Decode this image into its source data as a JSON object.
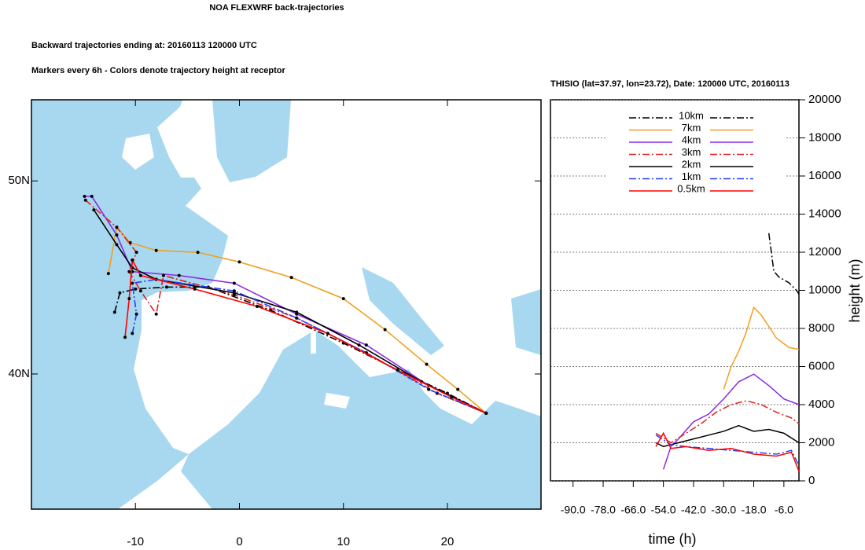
{
  "chart_data": [
    {
      "type": "trajectory-map",
      "title": "NOA FLEXWRF back-trajectories",
      "subtitles": [
        "Backward trajectories ending at: 20160113  120000 UTC",
        "Markers every 6h - Colors denote trajectory height at receptor"
      ],
      "xlim": [
        -20,
        29
      ],
      "ylim": [
        33,
        54.2
      ],
      "xticks": [
        -10,
        0,
        10,
        20
      ],
      "yticks": [
        {
          "value": 40,
          "label": "40N"
        },
        {
          "value": 50,
          "label": "50N"
        }
      ],
      "series": [
        {
          "color": "#000000",
          "linestyle": "dashdot",
          "lon": [
            -12,
            -11.5,
            -10,
            -7,
            -3,
            3,
            10,
            16,
            20,
            23.72
          ],
          "lat": [
            43.2,
            44.2,
            44.4,
            44.5,
            44.5,
            43.3,
            41.6,
            40.0,
            39.0,
            37.97
          ]
        },
        {
          "color": "#f0a020",
          "linestyle": "solid",
          "lon": [
            -12.6,
            -11.8,
            -10.5,
            -8,
            -4,
            0,
            5,
            10,
            14,
            18,
            21,
            23.72
          ],
          "lat": [
            45.2,
            47.6,
            46.8,
            46.4,
            46.3,
            45.8,
            45.0,
            43.9,
            42.3,
            40.5,
            39.2,
            37.97
          ]
        },
        {
          "color": "#8a2be2",
          "linestyle": "solid",
          "lon": [
            -14.9,
            -14.2,
            -11.8,
            -10.3,
            -5.8,
            -0.5,
            5.5,
            12.2,
            18.2,
            23.72
          ],
          "lat": [
            49.2,
            49.2,
            47.2,
            45.3,
            45.1,
            44.7,
            43.1,
            41.5,
            39.4,
            37.97
          ]
        },
        {
          "color": "#e02020",
          "linestyle": "dashdot",
          "lon": [
            -14.8,
            -11.8,
            -9.9,
            -10.6,
            -9.5,
            -8,
            -7.3,
            -0.5,
            5.5,
            12.2,
            19,
            23.72
          ],
          "lat": [
            49,
            47.6,
            46.3,
            45.3,
            44.3,
            43.1,
            45.1,
            44.1,
            42.9,
            41.1,
            39,
            37.97
          ]
        },
        {
          "color": "#000000",
          "linestyle": "solid",
          "lon": [
            -14,
            -11.8,
            -10.3,
            -8,
            -0.5,
            5.5,
            11.5,
            17.5,
            23.72
          ],
          "lat": [
            48.5,
            46.7,
            45.5,
            44.9,
            44.2,
            43.2,
            41.5,
            39.6,
            37.97
          ]
        },
        {
          "color": "#1f3fff",
          "linestyle": "dashdot",
          "lon": [
            -10.3,
            -9.9,
            -10.3,
            -8,
            -0.5,
            5.5,
            12.2,
            18.2,
            23.72
          ],
          "lat": [
            42.1,
            43.1,
            44.7,
            44.9,
            44.3,
            42.9,
            41.1,
            39.2,
            37.97
          ]
        },
        {
          "color": "#ff0000",
          "linestyle": "solid",
          "lon": [
            -11,
            -10.6,
            -10.3,
            -9.5,
            -4.3,
            1.7,
            8.5,
            15.2,
            20.4,
            23.72
          ],
          "lat": [
            41.9,
            43.9,
            45.9,
            45.1,
            44.4,
            43.5,
            42.1,
            40.2,
            38.8,
            37.97
          ]
        }
      ]
    },
    {
      "type": "line",
      "title": "THISIO (lat=37.97,  lon=23.72), Date: 120000 UTC, 20160113",
      "x_label": "time (h)",
      "y_label": "height (m)",
      "xlim": [
        -99,
        0
      ],
      "ylim": [
        0,
        20000
      ],
      "xticks": [
        {
          "value": -90,
          "label": "-90.0"
        },
        {
          "value": -78,
          "label": "-78.0"
        },
        {
          "value": -66,
          "label": "-66.0"
        },
        {
          "value": -54,
          "label": "-54.0"
        },
        {
          "value": -42,
          "label": "-42.0"
        },
        {
          "value": -30,
          "label": "-30.0"
        },
        {
          "value": -18,
          "label": "-18.0"
        },
        {
          "value": -6,
          "label": "-6.0"
        }
      ],
      "yticks": [
        0,
        2000,
        4000,
        6000,
        8000,
        10000,
        12000,
        14000,
        16000,
        18000,
        20000
      ],
      "grid": true,
      "series": [
        {
          "name": "10km",
          "color": "#000000",
          "linestyle": "dashdot",
          "x": [
            -12,
            -11,
            -10,
            -8,
            -4,
            -1,
            0
          ],
          "values": [
            13000,
            12000,
            11000,
            10700,
            10400,
            10000,
            9800
          ]
        },
        {
          "name": "7km",
          "color": "#f0a020",
          "linestyle": "solid",
          "x": [
            -30,
            -27,
            -24,
            -21,
            -18,
            -15,
            -9,
            -4,
            0
          ],
          "values": [
            4800,
            6000,
            6800,
            7800,
            9100,
            8700,
            7500,
            7000,
            6900
          ]
        },
        {
          "name": "4km",
          "color": "#8a2be2",
          "linestyle": "solid",
          "x": [
            -54,
            -51,
            -48,
            -42,
            -36,
            -30,
            -24,
            -18,
            -12,
            -6,
            0
          ],
          "values": [
            600,
            1800,
            2200,
            3100,
            3500,
            4300,
            5200,
            5600,
            5000,
            4300,
            4000
          ]
        },
        {
          "name": "3km",
          "color": "#e02020",
          "linestyle": "dashdot",
          "x": [
            -57,
            -51,
            -45,
            -39,
            -33,
            -27,
            -21,
            -15,
            -9,
            -3,
            0
          ],
          "values": [
            2500,
            2000,
            2500,
            3000,
            3600,
            4000,
            4200,
            4000,
            3600,
            3300,
            3000
          ]
        },
        {
          "name": "2km",
          "color": "#000000",
          "linestyle": "solid",
          "x": [
            -57,
            -54,
            -48,
            -42,
            -36,
            -30,
            -24,
            -18,
            -12,
            -6,
            0
          ],
          "values": [
            2000,
            1800,
            2000,
            2200,
            2400,
            2600,
            2900,
            2600,
            2700,
            2500,
            2000
          ]
        },
        {
          "name": "1km",
          "color": "#1f3fff",
          "linestyle": "dashdot",
          "x": [
            -57,
            -51,
            -45,
            -36,
            -27,
            -18,
            -9,
            -3,
            0
          ],
          "values": [
            2400,
            1900,
            1800,
            1700,
            1600,
            1500,
            1400,
            1600,
            800
          ]
        },
        {
          "name": "0.5km",
          "color": "#ff0000",
          "linestyle": "solid",
          "x": [
            -57,
            -54,
            -51,
            -45,
            -36,
            -27,
            -18,
            -9,
            -3,
            0
          ],
          "values": [
            1800,
            2500,
            1700,
            1800,
            1600,
            1700,
            1400,
            1300,
            1500,
            500
          ]
        }
      ]
    }
  ]
}
